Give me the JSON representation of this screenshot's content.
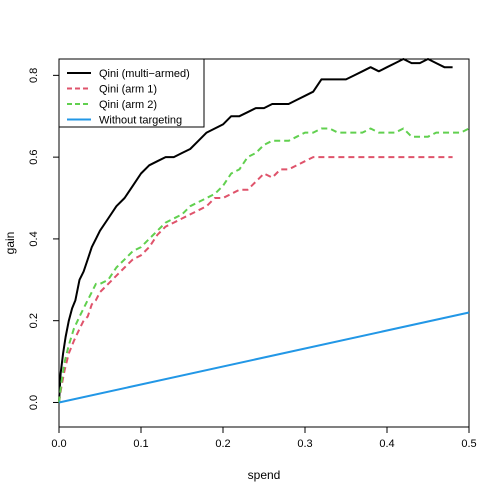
{
  "chart_data": {
    "type": "line",
    "xlabel": "spend",
    "ylabel": "gain",
    "xlim": [
      0,
      0.5
    ],
    "ylim": [
      -0.06,
      0.84
    ],
    "x_ticks": [
      0.0,
      0.1,
      0.2,
      0.3,
      0.4,
      0.5
    ],
    "x_tick_labels": [
      "0.0",
      "0.1",
      "0.2",
      "0.3",
      "0.4",
      "0.5"
    ],
    "y_ticks": [
      0.0,
      0.2,
      0.4,
      0.6,
      0.8
    ],
    "y_tick_labels": [
      "0.0",
      "0.2",
      "0.4",
      "0.6",
      "0.8"
    ],
    "grid": false,
    "legend_position": "top-left",
    "series": [
      {
        "name": "Qini (multi−armed)",
        "color": "#000000",
        "dash": "solid",
        "x": [
          0,
          0.002,
          0.005,
          0.008,
          0.012,
          0.016,
          0.02,
          0.025,
          0.03,
          0.035,
          0.04,
          0.045,
          0.05,
          0.06,
          0.07,
          0.08,
          0.09,
          0.1,
          0.11,
          0.12,
          0.13,
          0.14,
          0.15,
          0.16,
          0.17,
          0.18,
          0.19,
          0.2,
          0.21,
          0.22,
          0.23,
          0.24,
          0.25,
          0.26,
          0.27,
          0.28,
          0.29,
          0.3,
          0.31,
          0.32,
          0.33,
          0.34,
          0.35,
          0.36,
          0.37,
          0.38,
          0.39,
          0.4,
          0.41,
          0.42,
          0.43,
          0.44,
          0.45,
          0.46,
          0.47,
          0.48
        ],
        "values": [
          0,
          0.07,
          0.12,
          0.16,
          0.2,
          0.23,
          0.25,
          0.3,
          0.32,
          0.35,
          0.38,
          0.4,
          0.42,
          0.45,
          0.48,
          0.5,
          0.53,
          0.56,
          0.58,
          0.59,
          0.6,
          0.6,
          0.61,
          0.62,
          0.64,
          0.66,
          0.67,
          0.68,
          0.7,
          0.7,
          0.71,
          0.72,
          0.72,
          0.73,
          0.73,
          0.73,
          0.74,
          0.75,
          0.76,
          0.79,
          0.79,
          0.79,
          0.79,
          0.8,
          0.81,
          0.82,
          0.81,
          0.82,
          0.83,
          0.84,
          0.83,
          0.83,
          0.84,
          0.83,
          0.82,
          0.82
        ]
      },
      {
        "name": "Qini (arm 1)",
        "color": "#DF536B",
        "dash": "dashed",
        "x": [
          0,
          0.003,
          0.007,
          0.012,
          0.018,
          0.025,
          0.03,
          0.035,
          0.04,
          0.045,
          0.05,
          0.06,
          0.07,
          0.08,
          0.09,
          0.1,
          0.11,
          0.12,
          0.13,
          0.14,
          0.15,
          0.16,
          0.17,
          0.18,
          0.19,
          0.2,
          0.21,
          0.22,
          0.23,
          0.24,
          0.25,
          0.26,
          0.27,
          0.28,
          0.29,
          0.3,
          0.31,
          0.35,
          0.4,
          0.45,
          0.48
        ],
        "values": [
          0,
          0.04,
          0.08,
          0.12,
          0.15,
          0.18,
          0.2,
          0.21,
          0.24,
          0.25,
          0.27,
          0.29,
          0.31,
          0.33,
          0.35,
          0.36,
          0.38,
          0.41,
          0.43,
          0.44,
          0.45,
          0.46,
          0.47,
          0.48,
          0.5,
          0.5,
          0.51,
          0.52,
          0.52,
          0.54,
          0.56,
          0.55,
          0.57,
          0.57,
          0.58,
          0.59,
          0.6,
          0.6,
          0.6,
          0.6,
          0.6
        ]
      },
      {
        "name": "Qini (arm 2)",
        "color": "#61D04F",
        "dash": "dashed",
        "x": [
          0,
          0.003,
          0.007,
          0.012,
          0.018,
          0.025,
          0.03,
          0.035,
          0.04,
          0.045,
          0.05,
          0.06,
          0.07,
          0.08,
          0.09,
          0.1,
          0.11,
          0.12,
          0.13,
          0.14,
          0.15,
          0.16,
          0.17,
          0.18,
          0.19,
          0.2,
          0.21,
          0.22,
          0.23,
          0.24,
          0.25,
          0.26,
          0.27,
          0.28,
          0.29,
          0.3,
          0.31,
          0.32,
          0.33,
          0.34,
          0.35,
          0.36,
          0.37,
          0.38,
          0.39,
          0.4,
          0.41,
          0.42,
          0.43,
          0.44,
          0.45,
          0.46,
          0.47,
          0.48,
          0.49,
          0.5
        ],
        "values": [
          0,
          0.05,
          0.1,
          0.14,
          0.18,
          0.21,
          0.23,
          0.25,
          0.27,
          0.29,
          0.29,
          0.3,
          0.33,
          0.35,
          0.37,
          0.38,
          0.4,
          0.42,
          0.44,
          0.45,
          0.46,
          0.48,
          0.49,
          0.5,
          0.51,
          0.53,
          0.56,
          0.57,
          0.6,
          0.61,
          0.63,
          0.64,
          0.64,
          0.64,
          0.65,
          0.66,
          0.66,
          0.67,
          0.67,
          0.66,
          0.66,
          0.66,
          0.66,
          0.67,
          0.66,
          0.66,
          0.66,
          0.67,
          0.65,
          0.65,
          0.65,
          0.66,
          0.66,
          0.66,
          0.66,
          0.67
        ]
      },
      {
        "name": "Without targeting",
        "color": "#2297E6",
        "dash": "solid",
        "x": [
          0,
          0.5
        ],
        "values": [
          0,
          0.22
        ]
      }
    ]
  }
}
